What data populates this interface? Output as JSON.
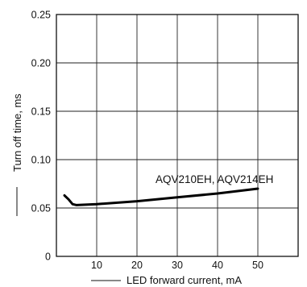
{
  "chart_data": {
    "type": "line",
    "xlabel": "LED forward current, mA",
    "ylabel": "Turn off time, ms",
    "xlim": [
      0,
      60
    ],
    "ylim": [
      0,
      0.25
    ],
    "x_ticks": [
      "10",
      "20",
      "30",
      "40",
      "50"
    ],
    "y_ticks": [
      "0",
      "0.05",
      "0.10",
      "0.15",
      "0.20",
      "0.25"
    ],
    "grid": true,
    "series": [
      {
        "name": "AQV210EH, AQV214EH",
        "x": [
          2,
          3,
          4,
          5,
          10,
          20,
          30,
          40,
          50
        ],
        "y": [
          0.063,
          0.059,
          0.054,
          0.053,
          0.054,
          0.057,
          0.061,
          0.065,
          0.07
        ]
      }
    ]
  }
}
